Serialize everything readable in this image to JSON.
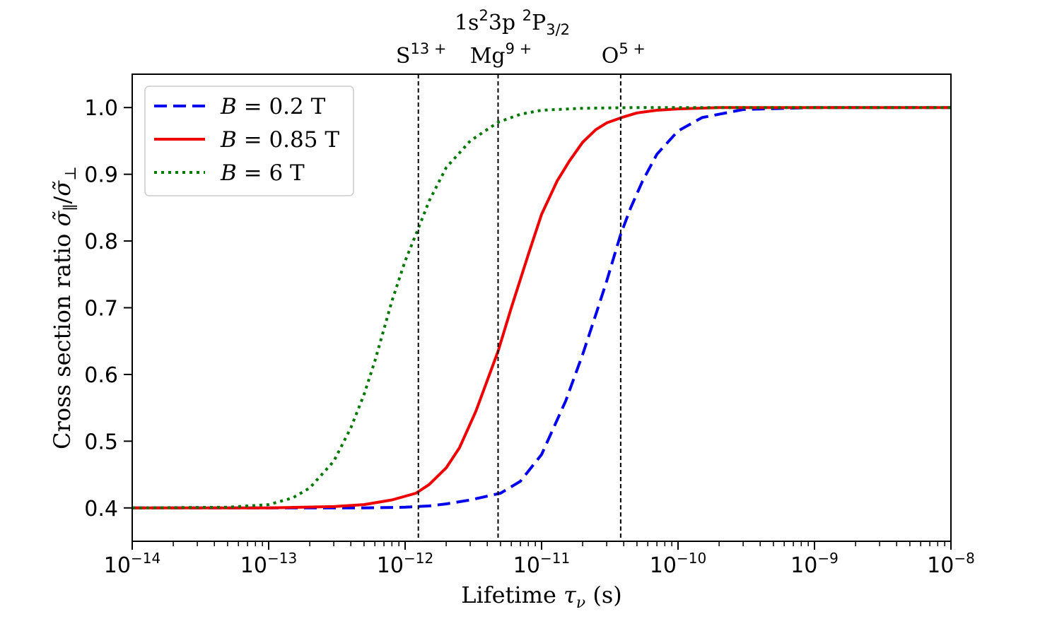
{
  "chart_data": {
    "type": "line",
    "xscale": "log",
    "xlim": [
      1e-14,
      1e-08
    ],
    "ylim": [
      0.35,
      1.05
    ],
    "xlabel": "Lifetime τν (s)",
    "ylabel": "Cross section ratio σ̃∥/σ̃⊥",
    "x_ticks": [
      {
        "value": 1e-14,
        "label": "10−14"
      },
      {
        "value": 1e-13,
        "label": "10−13"
      },
      {
        "value": 1e-12,
        "label": "10−12"
      },
      {
        "value": 1e-11,
        "label": "10−11"
      },
      {
        "value": 1e-10,
        "label": "10−10"
      },
      {
        "value": 1e-09,
        "label": "10−9"
      },
      {
        "value": 1e-08,
        "label": "10−8"
      }
    ],
    "y_ticks": [
      {
        "value": 0.4,
        "label": "0.4"
      },
      {
        "value": 0.5,
        "label": "0.5"
      },
      {
        "value": 0.6,
        "label": "0.6"
      },
      {
        "value": 0.7,
        "label": "0.7"
      },
      {
        "value": 0.8,
        "label": "0.8"
      },
      {
        "value": 0.9,
        "label": "0.9"
      },
      {
        "value": 1.0,
        "label": "1.0"
      }
    ],
    "legend_position": "top-left",
    "series": [
      {
        "name": "B = 0.2 T",
        "legend_label": "B = 0.2 T",
        "color": "#0000ee",
        "style": "dashed",
        "x": [
          1e-14,
          1e-13,
          5e-13,
          1e-12,
          1.5e-12,
          2e-12,
          3e-12,
          5e-12,
          7e-12,
          1e-11,
          1.5e-11,
          2e-11,
          2.5e-11,
          3e-11,
          3.8e-11,
          4.5e-11,
          5.5e-11,
          7e-11,
          1e-10,
          1.5e-10,
          3e-10,
          1e-09,
          1e-08
        ],
        "y": [
          0.4,
          0.4,
          0.4,
          0.401,
          0.403,
          0.406,
          0.412,
          0.422,
          0.44,
          0.48,
          0.56,
          0.63,
          0.69,
          0.74,
          0.81,
          0.85,
          0.89,
          0.93,
          0.965,
          0.985,
          0.997,
          1.0,
          1.0
        ]
      },
      {
        "name": "B = 0.85 T",
        "legend_label": "B = 0.85 T",
        "color": "#ee0000",
        "style": "solid",
        "x": [
          1e-14,
          1e-13,
          3e-13,
          5e-13,
          8e-13,
          1.2e-12,
          1.5e-12,
          2e-12,
          2.5e-12,
          3.3e-12,
          4.8e-12,
          6e-12,
          8e-12,
          1e-11,
          1.3e-11,
          1.6e-11,
          2e-11,
          2.5e-11,
          3e-11,
          4e-11,
          5e-11,
          7e-11,
          1e-10,
          2e-10,
          1e-08
        ],
        "y": [
          0.4,
          0.4,
          0.402,
          0.405,
          0.412,
          0.422,
          0.435,
          0.46,
          0.49,
          0.545,
          0.635,
          0.7,
          0.78,
          0.84,
          0.89,
          0.92,
          0.948,
          0.967,
          0.977,
          0.986,
          0.992,
          0.996,
          0.998,
          1.0,
          1.0
        ]
      },
      {
        "name": "B = 6 T",
        "legend_label": "B = 6 T",
        "color": "#007700",
        "style": "dotted",
        "x": [
          1e-14,
          5e-14,
          1e-13,
          1.5e-13,
          2e-13,
          3e-13,
          4e-13,
          5e-13,
          6e-13,
          8e-13,
          1e-12,
          1.2e-12,
          1.5e-12,
          2e-12,
          3e-12,
          4.8e-12,
          7e-12,
          1e-11,
          2e-11,
          5e-11,
          1e-08
        ],
        "y": [
          0.4,
          0.401,
          0.405,
          0.415,
          0.43,
          0.47,
          0.52,
          0.57,
          0.62,
          0.71,
          0.77,
          0.81,
          0.86,
          0.91,
          0.95,
          0.978,
          0.99,
          0.996,
          0.999,
          1.0,
          1.0
        ]
      }
    ],
    "vlines": [
      {
        "x": 1.25e-12,
        "base": "S",
        "sup": "13 +"
      },
      {
        "x": 4.8e-12,
        "base": "Mg",
        "sup": "9 +"
      },
      {
        "x": 3.8e-11,
        "base": "O",
        "sup": "5 +"
      }
    ],
    "annotation": "1s²3p ²P3/2"
  }
}
